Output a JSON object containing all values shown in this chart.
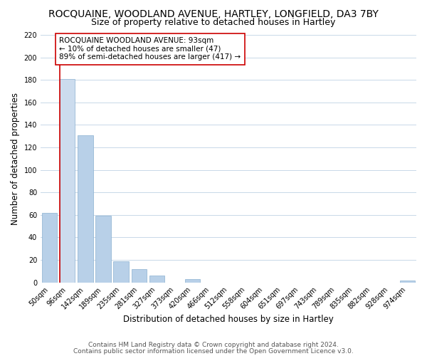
{
  "title": "ROCQUAINE, WOODLAND AVENUE, HARTLEY, LONGFIELD, DA3 7BY",
  "subtitle": "Size of property relative to detached houses in Hartley",
  "xlabel": "Distribution of detached houses by size in Hartley",
  "ylabel": "Number of detached properties",
  "bin_labels": [
    "50sqm",
    "96sqm",
    "142sqm",
    "189sqm",
    "235sqm",
    "281sqm",
    "327sqm",
    "373sqm",
    "420sqm",
    "466sqm",
    "512sqm",
    "558sqm",
    "604sqm",
    "651sqm",
    "697sqm",
    "743sqm",
    "789sqm",
    "835sqm",
    "882sqm",
    "928sqm",
    "974sqm"
  ],
  "bar_values": [
    62,
    181,
    131,
    59,
    19,
    12,
    6,
    0,
    3,
    0,
    0,
    0,
    0,
    0,
    0,
    0,
    0,
    0,
    0,
    0,
    2
  ],
  "bar_color": "#b8d0e8",
  "highlight_color": "#b8d0e8",
  "highlight_index": 1,
  "annotation_title": "ROCQUAINE WOODLAND AVENUE: 93sqm",
  "annotation_line1": "← 10% of detached houses are smaller (47)",
  "annotation_line2": "89% of semi-detached houses are larger (417) →",
  "vline_color": "#cc0000",
  "ylim": [
    0,
    220
  ],
  "yticks": [
    0,
    20,
    40,
    60,
    80,
    100,
    120,
    140,
    160,
    180,
    200,
    220
  ],
  "footer_line1": "Contains HM Land Registry data © Crown copyright and database right 2024.",
  "footer_line2": "Contains public sector information licensed under the Open Government Licence v3.0.",
  "bg_color": "#ffffff",
  "grid_color": "#c8d8e8",
  "title_fontsize": 10,
  "subtitle_fontsize": 9,
  "axis_label_fontsize": 8.5,
  "tick_fontsize": 7,
  "footer_fontsize": 6.5
}
